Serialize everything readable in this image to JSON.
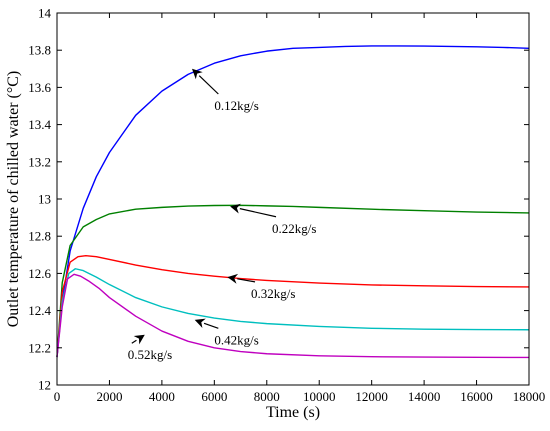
{
  "chart_data": {
    "type": "line",
    "xlabel": "Time (s)",
    "ylabel": "Outlet temperature of chilled water (°C)",
    "xlim": [
      0,
      18000
    ],
    "ylim": [
      12,
      14
    ],
    "xticks": [
      0,
      2000,
      4000,
      6000,
      8000,
      10000,
      12000,
      14000,
      16000,
      18000
    ],
    "yticks": [
      12,
      12.2,
      12.4,
      12.6,
      12.8,
      13,
      13.2,
      13.4,
      13.6,
      13.8,
      14
    ],
    "ytick_labels": [
      "12",
      "12.2",
      "12.4",
      "12.6",
      "12.8",
      "13",
      "13.2",
      "13.4",
      "13.6",
      "13.8",
      "14"
    ],
    "grid": false,
    "series": [
      {
        "name": "0.12kg/s",
        "color": "#0000ff",
        "x": [
          0,
          200,
          500,
          1000,
          1500,
          2000,
          3000,
          4000,
          5000,
          6000,
          7000,
          8000,
          9000,
          10000,
          11000,
          12000,
          13000,
          14000,
          15000,
          16000,
          17000,
          18000
        ],
        "y": [
          12.15,
          12.45,
          12.72,
          12.95,
          13.12,
          13.25,
          13.45,
          13.58,
          13.67,
          13.73,
          13.77,
          13.795,
          13.81,
          13.815,
          13.82,
          13.823,
          13.823,
          13.822,
          13.82,
          13.818,
          13.815,
          13.81
        ]
      },
      {
        "name": "0.22kg/s",
        "color": "#008000",
        "x": [
          0,
          200,
          500,
          1000,
          1500,
          2000,
          3000,
          4000,
          5000,
          6000,
          7000,
          8000,
          9000,
          10000,
          12000,
          14000,
          16000,
          18000
        ],
        "y": [
          12.15,
          12.55,
          12.75,
          12.85,
          12.89,
          12.92,
          12.945,
          12.955,
          12.962,
          12.965,
          12.966,
          12.963,
          12.96,
          12.955,
          12.945,
          12.937,
          12.93,
          12.925
        ]
      },
      {
        "name": "0.32kg/s",
        "color": "#ff0000",
        "x": [
          0,
          200,
          500,
          800,
          1100,
          1500,
          2000,
          3000,
          4000,
          5000,
          6000,
          7000,
          8000,
          10000,
          12000,
          14000,
          16000,
          18000
        ],
        "y": [
          12.15,
          12.5,
          12.66,
          12.69,
          12.695,
          12.69,
          12.675,
          12.645,
          12.62,
          12.6,
          12.585,
          12.572,
          12.562,
          12.548,
          12.538,
          12.533,
          12.529,
          12.527
        ]
      },
      {
        "name": "0.42kg/s",
        "color": "#00bfbf",
        "x": [
          0,
          200,
          450,
          700,
          1000,
          1500,
          2000,
          3000,
          4000,
          5000,
          6000,
          7000,
          8000,
          10000,
          12000,
          14000,
          16000,
          18000
        ],
        "y": [
          12.15,
          12.45,
          12.6,
          12.625,
          12.615,
          12.58,
          12.54,
          12.47,
          12.42,
          12.385,
          12.36,
          12.342,
          12.33,
          12.315,
          12.305,
          12.3,
          12.298,
          12.297
        ]
      },
      {
        "name": "0.52kg/s",
        "color": "#bf00bf",
        "x": [
          0,
          200,
          400,
          650,
          900,
          1200,
          1600,
          2000,
          3000,
          4000,
          5000,
          6000,
          7000,
          8000,
          10000,
          12000,
          14000,
          16000,
          18000
        ],
        "y": [
          12.15,
          12.42,
          12.57,
          12.595,
          12.585,
          12.56,
          12.52,
          12.47,
          12.37,
          12.29,
          12.235,
          12.2,
          12.18,
          12.168,
          12.157,
          12.152,
          12.15,
          12.149,
          12.148
        ]
      }
    ],
    "annotations": [
      {
        "text": "0.12kg/s",
        "x": 6000,
        "y": 13.5,
        "arrow_to": [
          5150,
          13.7
        ]
      },
      {
        "text": "0.22kg/s",
        "x": 8200,
        "y": 12.84,
        "arrow_to": [
          6600,
          12.96
        ]
      },
      {
        "text": "0.32kg/s",
        "x": 7400,
        "y": 12.49,
        "arrow_to": [
          6500,
          12.58
        ]
      },
      {
        "text": "0.42kg/s",
        "x": 6000,
        "y": 12.24,
        "arrow_to": [
          5250,
          12.35
        ]
      },
      {
        "text": "0.52kg/s",
        "x": 2700,
        "y": 12.16,
        "arrow_to": [
          3350,
          12.27
        ]
      }
    ]
  }
}
